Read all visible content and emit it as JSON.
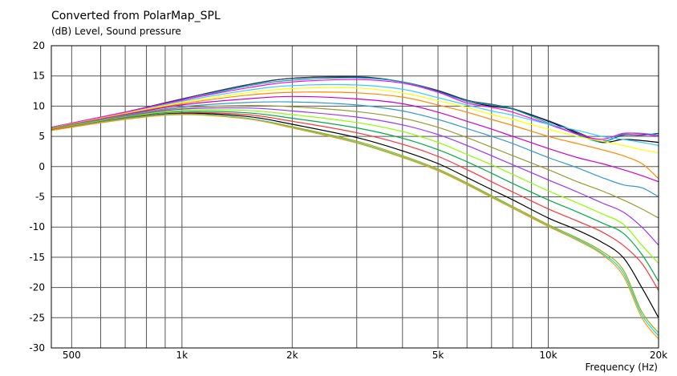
{
  "chart_data": {
    "type": "line",
    "title": "Converted from PolarMap_SPL",
    "ylabel": "(dB)  Level, Sound pressure",
    "xlabel": "Frequency  (Hz)",
    "x_scale": "log",
    "xlim": [
      440,
      20000
    ],
    "ylim": [
      -30,
      20
    ],
    "grid": true,
    "y_ticks": [
      "20",
      "15",
      "10",
      "5",
      "0",
      "-5",
      "-10",
      "-15",
      "-20",
      "-25",
      "-30"
    ],
    "x_tick_labels": [
      {
        "value": 500,
        "label": "500"
      },
      {
        "value": 1000,
        "label": "1k"
      },
      {
        "value": 2000,
        "label": "2k"
      },
      {
        "value": 5000,
        "label": "5k"
      },
      {
        "value": 10000,
        "label": "10k"
      },
      {
        "value": 20000,
        "label": "20k"
      }
    ],
    "x_gridlines": [
      500,
      600,
      700,
      800,
      900,
      1000,
      2000,
      3000,
      4000,
      5000,
      6000,
      7000,
      8000,
      9000,
      10000,
      20000
    ],
    "x": [
      440,
      700,
      1000,
      1500,
      2000,
      3000,
      4000,
      5000,
      6000,
      7000,
      8000,
      10000,
      12000,
      14000,
      16000,
      18000,
      20000
    ],
    "series": [
      {
        "color": "#000000",
        "values": [
          6.5,
          9.0,
          11.2,
          13.5,
          14.6,
          14.8,
          14.0,
          12.5,
          10.8,
          10.0,
          9.5,
          7.5,
          5.5,
          4.0,
          4.5,
          4.3,
          4.0
        ]
      },
      {
        "color": "#333366",
        "values": [
          6.5,
          9.0,
          11.2,
          13.5,
          14.6,
          14.9,
          14.0,
          12.6,
          11.0,
          10.3,
          9.6,
          7.6,
          5.7,
          4.2,
          5.2,
          5.2,
          5.5
        ]
      },
      {
        "color": "#00aaaa",
        "values": [
          6.5,
          9.0,
          11.0,
          13.3,
          14.3,
          14.7,
          14.0,
          12.4,
          10.8,
          10.2,
          9.5,
          7.2,
          5.3,
          4.1,
          5.4,
          5.5,
          5.2
        ]
      },
      {
        "color": "#ff00ff",
        "values": [
          6.5,
          9.0,
          11.0,
          13.0,
          14.0,
          14.4,
          13.8,
          12.3,
          10.5,
          9.8,
          9.0,
          7.0,
          5.4,
          4.5,
          5.5,
          5.4,
          5.0
        ]
      },
      {
        "color": "#33ccff",
        "values": [
          6.4,
          8.8,
          10.8,
          12.6,
          13.4,
          13.5,
          12.8,
          11.4,
          10.2,
          9.2,
          8.5,
          7.0,
          6.0,
          5.0,
          4.5,
          4.0,
          3.5
        ]
      },
      {
        "color": "#ffff00",
        "values": [
          6.4,
          8.8,
          10.6,
          12.2,
          12.9,
          13.0,
          12.2,
          10.9,
          9.8,
          8.6,
          7.8,
          6.2,
          5.0,
          4.2,
          3.5,
          2.8,
          2.3
        ]
      },
      {
        "color": "#ff8800",
        "values": [
          6.4,
          8.7,
          10.4,
          11.8,
          12.3,
          12.2,
          11.5,
          10.2,
          9.0,
          7.8,
          6.8,
          5.0,
          3.8,
          2.8,
          1.8,
          0.5,
          -2.0
        ]
      },
      {
        "color": "#cc00cc",
        "values": [
          6.3,
          8.6,
          10.2,
          11.2,
          11.6,
          11.2,
          10.4,
          9.0,
          7.5,
          6.2,
          5.0,
          3.0,
          1.5,
          0.5,
          -0.5,
          -1.5,
          -2.5
        ]
      },
      {
        "color": "#3399cc",
        "values": [
          6.3,
          8.5,
          9.9,
          10.6,
          10.7,
          10.2,
          9.2,
          7.8,
          6.3,
          5.0,
          3.8,
          1.5,
          -0.2,
          -1.8,
          -3.0,
          -3.5,
          -5.0
        ]
      },
      {
        "color": "#999933",
        "values": [
          6.2,
          8.4,
          9.7,
          10.1,
          9.9,
          9.1,
          8.0,
          6.5,
          4.8,
          3.2,
          1.8,
          -0.5,
          -2.5,
          -4.0,
          -5.5,
          -7.0,
          -8.5
        ]
      },
      {
        "color": "#9933ff",
        "values": [
          6.2,
          8.3,
          9.5,
          9.7,
          9.2,
          8.2,
          6.9,
          5.3,
          3.5,
          1.8,
          0.3,
          -2.2,
          -4.2,
          -6.0,
          -7.5,
          -10.0,
          -13.0
        ]
      },
      {
        "color": "#88ff00",
        "values": [
          6.2,
          8.2,
          9.3,
          9.3,
          8.6,
          7.3,
          5.8,
          4.0,
          2.0,
          0.3,
          -1.3,
          -4.0,
          -6.0,
          -7.8,
          -9.5,
          -13.0,
          -16.0
        ]
      },
      {
        "color": "#00aa44",
        "values": [
          6.1,
          8.1,
          9.1,
          8.9,
          8.0,
          6.4,
          4.7,
          2.8,
          0.8,
          -1.1,
          -2.8,
          -5.5,
          -7.5,
          -9.3,
          -11.0,
          -14.5,
          -19.0
        ]
      },
      {
        "color": "#ff3333",
        "values": [
          6.1,
          8.0,
          8.9,
          8.6,
          7.5,
          5.6,
          3.7,
          1.7,
          -0.5,
          -2.5,
          -4.2,
          -7.0,
          -9.0,
          -10.8,
          -13.0,
          -16.0,
          -20.5
        ]
      },
      {
        "color": "#000000",
        "values": [
          6.0,
          7.9,
          8.8,
          8.3,
          7.0,
          4.8,
          2.6,
          0.5,
          -1.8,
          -3.8,
          -5.5,
          -8.5,
          -10.5,
          -12.5,
          -15.0,
          -20.0,
          -25.0
        ]
      },
      {
        "color": "#aaaa00",
        "values": [
          6.0,
          7.9,
          8.7,
          8.0,
          6.6,
          4.2,
          1.8,
          -0.4,
          -2.7,
          -4.8,
          -6.6,
          -9.6,
          -11.8,
          -14.0,
          -17.0,
          -24.0,
          -27.5
        ]
      },
      {
        "color": "#00dddd",
        "values": [
          6.0,
          7.9,
          8.7,
          8.0,
          6.5,
          4.0,
          1.6,
          -0.6,
          -2.9,
          -5.0,
          -6.8,
          -9.8,
          -12.0,
          -14.3,
          -17.5,
          -24.5,
          -28.0
        ]
      },
      {
        "color": "#ff9900",
        "values": [
          6.0,
          7.8,
          8.6,
          7.9,
          6.4,
          3.9,
          1.5,
          -0.7,
          -3.0,
          -5.1,
          -6.9,
          -9.9,
          -12.2,
          -14.5,
          -18.0,
          -25.0,
          -28.5
        ]
      }
    ]
  }
}
